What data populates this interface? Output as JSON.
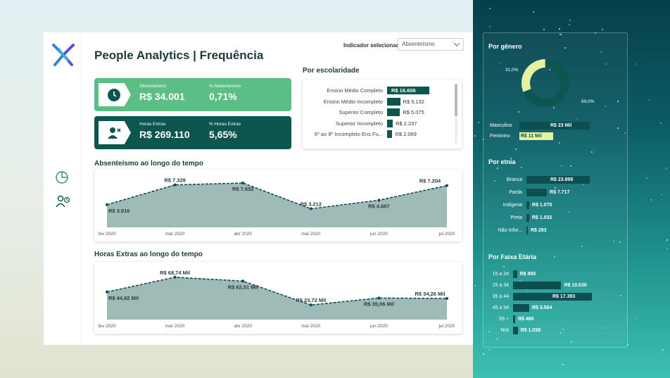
{
  "page_title": "People Analytics | Frequência",
  "indicator": {
    "label": "Indicador selecionado",
    "selected": "Absenteísmo"
  },
  "kpis": [
    {
      "label1": "Absenteísmo",
      "value1": "R$ 34.001",
      "label2": "% Absenteísmo",
      "value2": "0,71%",
      "icon": "clock-icon"
    },
    {
      "label1": "Horas Extras",
      "value1": "R$ 269.110",
      "label2": "% Horas Extras",
      "value2": "5,65%",
      "icon": "user-remove-icon"
    }
  ],
  "education": {
    "title": "Por escolaridade",
    "rows": [
      {
        "category": "Ensino Médio Completo",
        "value": 16606,
        "label": "R$ 16.606"
      },
      {
        "category": "Ensino Médio Incompleto",
        "value": 5132,
        "label": "R$ 5.132"
      },
      {
        "category": "Superior Completo",
        "value": 5075,
        "label": "R$ 5.075"
      },
      {
        "category": "Superior Incompleto",
        "value": 2237,
        "label": "R$ 2.237"
      },
      {
        "category": "6º ao 9º Incompleto Ens.Fu...",
        "value": 2069,
        "label": "R$ 2.069"
      }
    ]
  },
  "chart_data": [
    {
      "type": "area",
      "title": "Absenteísmo ao longo do tempo",
      "categories": [
        "fev 2020",
        "mar 2020",
        "abr 2020",
        "mai 2020",
        "jun 2020",
        "jul 2020"
      ],
      "values": [
        3916,
        7329,
        7652,
        3212,
        4687,
        7204
      ],
      "labels": [
        "R$ 3.916",
        "R$ 7.329",
        "R$ 7.652",
        "R$ 3.212",
        "R$ 4.687",
        "R$ 7.204"
      ],
      "ylim": [
        0,
        8500
      ],
      "color": "#9fbbb8"
    },
    {
      "type": "area",
      "title": "Horas Extras ao longo do tempo",
      "categories": [
        "fev 2020",
        "mar 2020",
        "abr 2020",
        "mai 2020",
        "jun 2020",
        "jul 2020"
      ],
      "values": [
        44.82,
        68.74,
        62.51,
        23.72,
        35.06,
        34.26
      ],
      "labels": [
        "R$ 44,82 Mil",
        "R$ 68,74 Mil",
        "R$ 62,51 Mil",
        "R$ 23,72 Mil",
        "R$ 35,06 Mil",
        "R$ 34,26 Mil"
      ],
      "ylim": [
        0,
        80
      ],
      "color": "#9fbbb8"
    },
    {
      "type": "pie",
      "title": "Por gênero",
      "slices": [
        {
          "name": "Feminino",
          "value": 31.0,
          "label": "31,0%",
          "color": "#e5f2a0"
        },
        {
          "name": "Masculino",
          "value": 69.0,
          "label": "69,0%",
          "color": "#0d5650"
        }
      ]
    }
  ],
  "gender_bars": [
    {
      "category": "Masculino",
      "value": 23,
      "label": "R$ 23 Mil",
      "color": "#0d4f50"
    },
    {
      "category": "Feminino",
      "value": 11,
      "label": "R$ 11 Mil",
      "color": "#e5f2a0"
    }
  ],
  "ethnicity": {
    "title": "Por etnia",
    "rows": [
      {
        "category": "Branca",
        "value": 23898,
        "label": "R$ 23.898"
      },
      {
        "category": "Parda",
        "value": 7717,
        "label": "R$ 7.717"
      },
      {
        "category": "Indígena",
        "value": 1070,
        "label": "R$ 1.070"
      },
      {
        "category": "Preta",
        "value": 1032,
        "label": "R$ 1.032"
      },
      {
        "category": "Não Infor...",
        "value": 283,
        "label": "R$ 283"
      }
    ]
  },
  "age": {
    "title": "Por Faixa Etária",
    "rows": [
      {
        "category": "15 a 24",
        "value": 895,
        "label": "R$ 895"
      },
      {
        "category": "25 a 34",
        "value": 10630,
        "label": "R$ 10.630"
      },
      {
        "category": "35 a 44",
        "value": 17393,
        "label": "R$ 17.393"
      },
      {
        "category": "45 a 54",
        "value": 3564,
        "label": "R$ 3.564"
      },
      {
        "category": "55 +",
        "value": 480,
        "label": "R$ 480"
      },
      {
        "category": "N/A",
        "value": 1038,
        "label": "R$ 1.038"
      }
    ]
  },
  "colors": {
    "dark": "#0d5650",
    "green": "#5bbf85",
    "light_bar": "#e5f2a0"
  },
  "nav_icons": [
    "pie-chart-icon",
    "user-clock-icon"
  ]
}
